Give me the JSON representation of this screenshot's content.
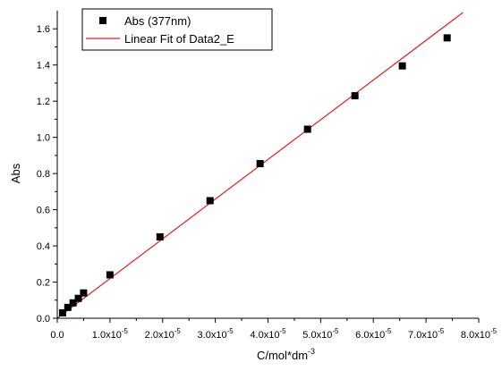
{
  "chart_data": {
    "type": "scatter",
    "xlabel": "C/mol*dm",
    "xlabel_superscript": "-3",
    "ylabel": "Abs",
    "xlim": [
      0,
      8e-05
    ],
    "ylim": [
      0,
      1.7
    ],
    "x_ticks": [
      {
        "value": 0,
        "mantissa": "0.0",
        "exp": ""
      },
      {
        "value": 1e-05,
        "mantissa": "1.0x10",
        "exp": "-5"
      },
      {
        "value": 2e-05,
        "mantissa": "2.0x10",
        "exp": "-5"
      },
      {
        "value": 3e-05,
        "mantissa": "3.0x10",
        "exp": "-5"
      },
      {
        "value": 4e-05,
        "mantissa": "4.0x10",
        "exp": "-5"
      },
      {
        "value": 5e-05,
        "mantissa": "5.0x10",
        "exp": "-5"
      },
      {
        "value": 6e-05,
        "mantissa": "6.0x10",
        "exp": "-5"
      },
      {
        "value": 7e-05,
        "mantissa": "7.0x10",
        "exp": "-5"
      },
      {
        "value": 8e-05,
        "mantissa": "8.0x10",
        "exp": "-5"
      }
    ],
    "y_ticks": [
      "0.0",
      "0.2",
      "0.4",
      "0.6",
      "0.8",
      "1.0",
      "1.2",
      "1.4",
      "1.6"
    ],
    "grid": false,
    "legend_position": "top-left",
    "series": [
      {
        "name": "Abs (377nm)",
        "kind": "scatter",
        "marker": "square",
        "color": "#000000",
        "x": [
          1e-06,
          2e-06,
          3e-06,
          4e-06,
          5e-06,
          1e-05,
          1.95e-05,
          2.9e-05,
          3.85e-05,
          4.75e-05,
          5.65e-05,
          6.55e-05,
          7.4e-05
        ],
        "y": [
          0.03,
          0.06,
          0.085,
          0.11,
          0.14,
          0.24,
          0.45,
          0.65,
          0.855,
          1.045,
          1.23,
          1.395,
          1.55
        ]
      },
      {
        "name": "Linear Fit of Data2_E",
        "kind": "line",
        "color": "#e0201b",
        "x": [
          0,
          7.7e-05
        ],
        "y": [
          0.0,
          1.69
        ]
      }
    ]
  }
}
